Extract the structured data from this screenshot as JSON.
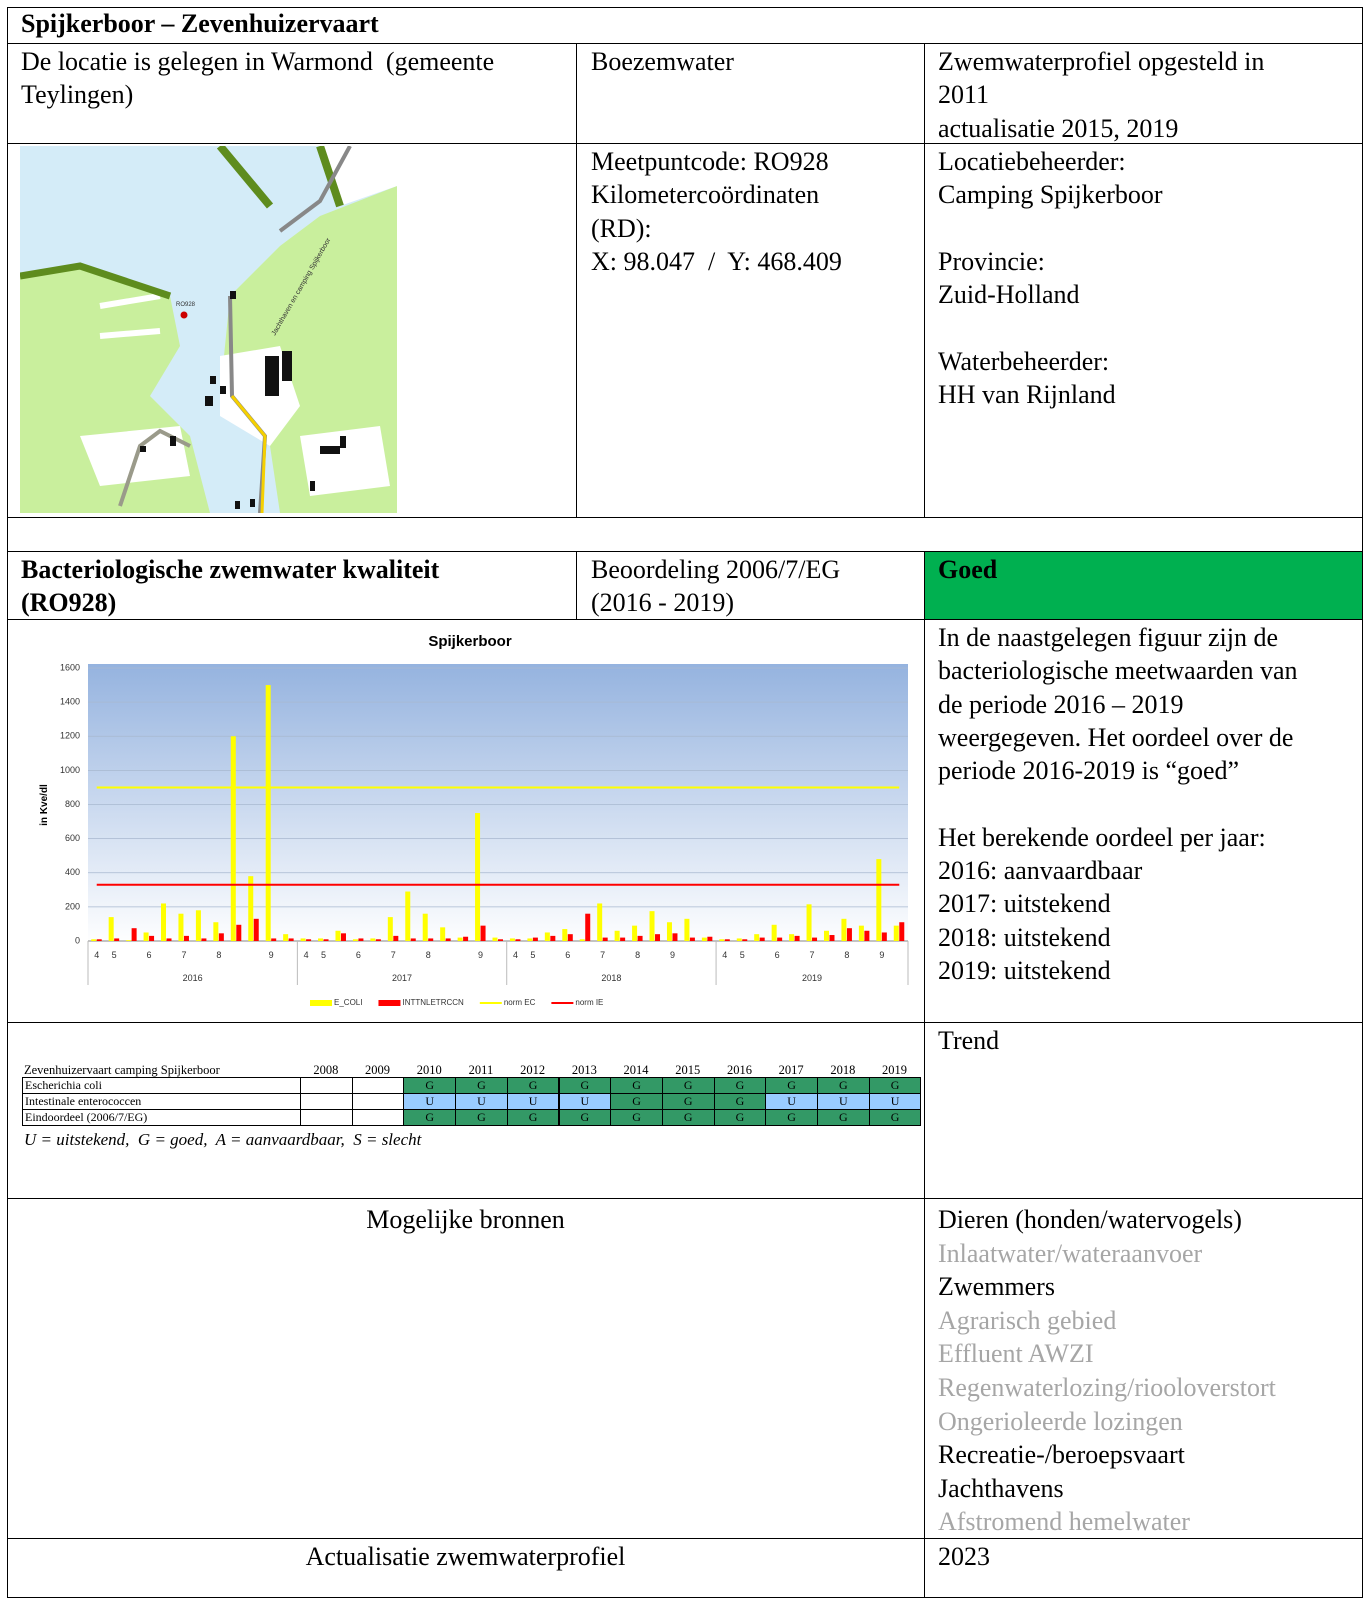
{
  "title": "Spijkerboor – Zevenhuizervaart",
  "location": {
    "lines": [
      "De locatie is gelegen in Warmond  (gemeente",
      "Teylingen)"
    ]
  },
  "water_type": "Boezemwater",
  "profile": {
    "lines": [
      "Zwemwaterprofiel opgesteld in",
      "2011",
      "actualisatie 2015, 2019"
    ]
  },
  "map": {
    "point_label": "RO928",
    "road_label": "Jachthaven en camping Spijkerboor"
  },
  "measurement": {
    "lines": [
      "Meetpuntcode: RO928",
      "Kilometercoördinaten",
      "(RD):",
      "X: 98.047  /  Y: 468.409"
    ]
  },
  "management": [
    {
      "label": "Locatiebeheerder:",
      "value": "Camping Spijkerboor"
    },
    {
      "label": "Provincie:",
      "value": "Zuid-Holland"
    },
    {
      "label": "Waterbeheerder:",
      "value": "HH van Rijnland"
    }
  ],
  "quality": {
    "heading_lines": [
      "Bacteriologische zwemwater kwaliteit",
      "(RO928)"
    ],
    "assessment_lines": [
      "Beoordeling 2006/7/EG",
      "(2016 - 2019)"
    ],
    "verdict": "Goed",
    "verdict_color": "#00b050"
  },
  "chart_data": {
    "type": "bar",
    "title": "Spijkerboor",
    "y_label": "in Kve/dl",
    "groups": [
      "2016",
      "2017",
      "2018",
      "2019"
    ],
    "categories": [
      [
        "4",
        "5",
        null,
        "6",
        null,
        "7",
        null,
        "8",
        null,
        null,
        "9",
        null
      ],
      [
        "4",
        "5",
        null,
        "6",
        null,
        "7",
        null,
        "8",
        null,
        null,
        "9",
        null
      ],
      [
        "4",
        "5",
        null,
        "6",
        null,
        "7",
        null,
        "8",
        null,
        "9",
        null,
        null
      ],
      [
        "4",
        "5",
        null,
        "6",
        null,
        "7",
        null,
        "8",
        null,
        "9",
        null
      ]
    ],
    "series": [
      {
        "name": "E_COLI",
        "color": "#ffff00",
        "values": [
          [
            10,
            140,
            5,
            50,
            220,
            160,
            180,
            110,
            1200,
            380,
            1500,
            40
          ],
          [
            15,
            15,
            60,
            10,
            15,
            140,
            290,
            160,
            80,
            20,
            750,
            20
          ],
          [
            15,
            15,
            50,
            70,
            10,
            220,
            60,
            90,
            175,
            110,
            130,
            20
          ],
          [
            10,
            15,
            40,
            95,
            40,
            215,
            60,
            130,
            90,
            480,
            90
          ]
        ]
      },
      {
        "name": "INTTNLETRCCN",
        "color": "#ff0000",
        "values": [
          [
            10,
            15,
            75,
            30,
            15,
            30,
            15,
            45,
            95,
            130,
            15,
            15
          ],
          [
            10,
            10,
            45,
            15,
            10,
            30,
            15,
            15,
            15,
            25,
            90,
            10
          ],
          [
            10,
            20,
            30,
            40,
            160,
            20,
            20,
            30,
            40,
            45,
            20,
            25
          ],
          [
            10,
            10,
            20,
            20,
            30,
            20,
            35,
            75,
            60,
            50,
            110
          ]
        ]
      }
    ],
    "norms": [
      {
        "name": "norm EC",
        "color": "#ffff00",
        "value": 900
      },
      {
        "name": "norm IE",
        "color": "#ff0000",
        "value": 330
      }
    ],
    "ylim": [
      0,
      1600
    ],
    "yticks": [
      0,
      200,
      400,
      600,
      800,
      1000,
      1200,
      1400,
      1600
    ],
    "grid": true
  },
  "explanation": {
    "lines": [
      "In de naastgelegen figuur zijn de",
      "bacteriologische meetwaarden van",
      "de periode 2016 – 2019",
      "weergegeven. Het oordeel over de",
      "periode 2016-2019 is “goed”"
    ],
    "yearly_lines": [
      "Het berekende oordeel per jaar:",
      "2016: aanvaardbaar",
      "2017: uitstekend",
      "2018: uitstekend",
      "2019: uitstekend"
    ]
  },
  "status_table": {
    "header": [
      "Zevenhuizervaart camping Spijkerboor",
      "2008",
      "2009",
      "2010",
      "2011",
      "2012",
      "2013",
      "2014",
      "2015",
      "2016",
      "2017",
      "2018",
      "2019"
    ],
    "rows": [
      {
        "name": "Escherichia coli",
        "cells": [
          null,
          null,
          "G",
          "G",
          "G",
          "G",
          "G",
          "G",
          "G",
          "G",
          "G",
          "G"
        ]
      },
      {
        "name": "Intestinale enterococcen",
        "cells": [
          null,
          null,
          "U",
          "U",
          "U",
          "U",
          "G",
          "G",
          "G",
          "U",
          "U",
          "U"
        ]
      },
      {
        "name": "Eindoordeel (2006/7/EG)",
        "cells": [
          null,
          null,
          "G",
          "G",
          "G",
          "G",
          "G",
          "G",
          "G",
          "G",
          "G",
          "G"
        ]
      }
    ],
    "colors": {
      "G": "#339966",
      "U": "#99ccff"
    },
    "legend": "U = uitstekend,  G = goed,  A = aanvaardbaar,  S = slecht"
  },
  "trend": "Trend",
  "sources": {
    "title": "Mogelijke bronnen",
    "active_color": "#000000",
    "inactive_color": "#a6a6a6",
    "items": [
      {
        "text": "Dieren (honden/watervogels)",
        "applies": true
      },
      {
        "text": "Inlaatwater/wateraanvoer",
        "applies": false
      },
      {
        "text": "Zwemmers",
        "applies": true
      },
      {
        "text": "Agrarisch gebied",
        "applies": false
      },
      {
        "text": "Effluent AWZI",
        "applies": false
      },
      {
        "text": "Regenwaterlozing/riooloverstort",
        "applies": false
      },
      {
        "text": "Ongerioleerde lozingen",
        "applies": false
      },
      {
        "text": "Recreatie-/beroepsvaart",
        "applies": true
      },
      {
        "text": "Jachthavens",
        "applies": true
      },
      {
        "text": "Afstromend hemelwater",
        "applies": false
      }
    ]
  },
  "update": {
    "label": "Actualisatie zwemwaterprofiel",
    "year": "2023"
  }
}
